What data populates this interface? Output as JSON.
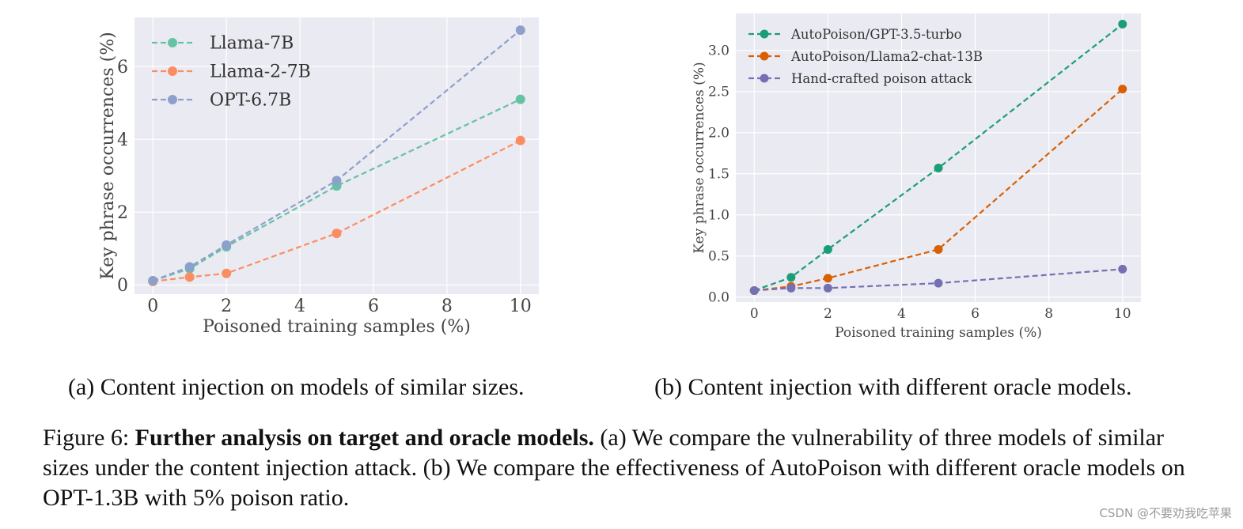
{
  "chart_data": [
    {
      "type": "line",
      "x": [
        0,
        1,
        2,
        5,
        10
      ],
      "series": [
        {
          "name": "Llama-7B",
          "values": [
            0.12,
            0.45,
            1.05,
            2.72,
            5.1
          ],
          "color": "#66c2a5"
        },
        {
          "name": "Llama-2-7B",
          "values": [
            0.1,
            0.22,
            0.32,
            1.42,
            3.97
          ],
          "color": "#fc8d62"
        },
        {
          "name": "OPT-6.7B",
          "values": [
            0.12,
            0.5,
            1.1,
            2.87,
            7.0
          ],
          "color": "#8da0cb"
        }
      ],
      "xlabel": "Poisoned training samples (%)",
      "ylabel": "Key phrase occurrences (%)",
      "xlim": [
        -0.5,
        10.5
      ],
      "ylim": [
        -0.25,
        7.35
      ],
      "xticks": [
        0,
        2,
        4,
        6,
        8,
        10
      ],
      "xtick_labels": [
        "0",
        "2",
        "4",
        "6",
        "8",
        "10"
      ],
      "yticks": [
        0,
        2,
        4,
        6
      ],
      "ytick_labels": [
        "0",
        "2",
        "4",
        "6"
      ],
      "legend": "top-left",
      "grid": true
    },
    {
      "type": "line",
      "x": [
        0,
        1,
        2,
        5,
        10
      ],
      "series": [
        {
          "name": "AutoPoison/GPT-3.5-turbo",
          "values": [
            0.08,
            0.24,
            0.58,
            1.57,
            3.32
          ],
          "color": "#1b9e77"
        },
        {
          "name": "AutoPoison/Llama2-chat-13B",
          "values": [
            0.08,
            0.13,
            0.23,
            0.58,
            2.53
          ],
          "color": "#d95f02"
        },
        {
          "name": "Hand-crafted poison attack",
          "values": [
            0.08,
            0.11,
            0.11,
            0.17,
            0.34
          ],
          "color": "#7570b3"
        }
      ],
      "xlabel": "Poisoned training samples (%)",
      "ylabel": "Key phrase occurrences (%)",
      "xlim": [
        -0.5,
        10.5
      ],
      "ylim": [
        -0.06,
        3.45
      ],
      "xticks": [
        0,
        2,
        4,
        6,
        8,
        10
      ],
      "xtick_labels": [
        "0",
        "2",
        "4",
        "6",
        "8",
        "10"
      ],
      "yticks": [
        0,
        0.5,
        1.0,
        1.5,
        2.0,
        2.5,
        3.0
      ],
      "ytick_labels": [
        "0.0",
        "0.5",
        "1.0",
        "1.5",
        "2.0",
        "2.5",
        "3.0"
      ],
      "legend": "top-left",
      "grid": true
    }
  ],
  "subcaptions": {
    "a": "(a) Content injection on models of similar sizes.",
    "b": "(b) Content injection with different oracle models."
  },
  "caption": {
    "label": "Figure 6:",
    "bold": "Further analysis on target and oracle models.",
    "text": "(a) We compare the vulnerability of three models of similar sizes under the content injection attack. (b) We compare the effectiveness of AutoPoison with different oracle models on OPT-1.3B with 5% poison ratio."
  },
  "watermark": "CSDN @不要劝我吃苹果"
}
